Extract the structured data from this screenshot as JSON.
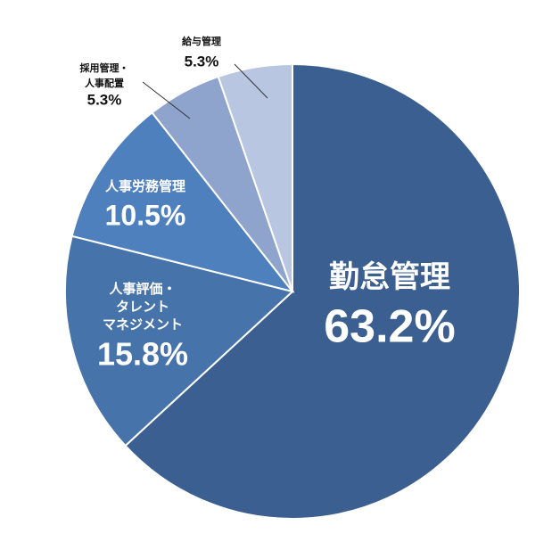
{
  "chart_data": {
    "type": "pie",
    "categories": [
      [
        "勤怠管理"
      ],
      [
        "人事評価・",
        "タレント",
        "マネジメント"
      ],
      [
        "人事労務管理"
      ],
      [
        "採用管理・",
        "人事配置"
      ],
      [
        "給与管理"
      ]
    ],
    "values": [
      63.2,
      15.8,
      10.5,
      5.3,
      5.3
    ],
    "value_labels": [
      "63.2%",
      "15.8%",
      "10.5%",
      "5.3%",
      "5.3%"
    ],
    "colors": [
      "#3a5f90",
      "#4673aa",
      "#4f80be",
      "#8fa4cc",
      "#b9c6e1"
    ]
  }
}
